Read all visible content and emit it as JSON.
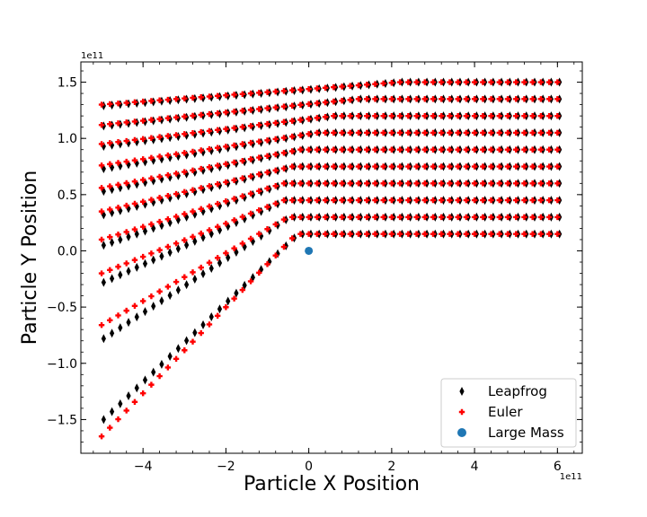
{
  "chart_data": {
    "type": "scatter",
    "xlabel": "Particle X Position",
    "ylabel": "Particle Y Position",
    "x_offset_label": "1e11",
    "y_offset_label": "1e11",
    "xlim": [
      -5.5,
      6.6
    ],
    "ylim": [
      -1.8,
      1.68
    ],
    "xticks": [
      -4,
      -2,
      0,
      2,
      4,
      6
    ],
    "xtick_labels": [
      "−4",
      "−2",
      "0",
      "2",
      "4",
      "6"
    ],
    "yticks": [
      -1.5,
      -1.0,
      -0.5,
      0.0,
      0.5,
      1.0,
      1.5
    ],
    "ytick_labels": [
      "−1.5",
      "−1.0",
      "−0.5",
      "0.0",
      "0.5",
      "1.0",
      "1.5"
    ],
    "grid": false,
    "legend_position": "lower-right",
    "x_range_particles": [
      -5.0,
      6.0
    ],
    "large_mass": {
      "x": 0.0,
      "y": 0.0,
      "color": "#1f77b4"
    },
    "series": [
      {
        "name": "Leapfrog",
        "marker": "thin-diamond",
        "color": "#000000"
      },
      {
        "name": "Euler",
        "marker": "plus-filled",
        "color": "#ff0000"
      },
      {
        "name": "Large Mass",
        "marker": "circle",
        "color": "#1f77b4"
      }
    ],
    "trajectories": [
      {
        "y_final": 0.15,
        "kink_x": -0.3,
        "leapfrog_start_y": -1.5,
        "euler_start_y": -1.65
      },
      {
        "y_final": 0.3,
        "kink_x": -0.5,
        "leapfrog_start_y": -0.78,
        "euler_start_y": -0.66
      },
      {
        "y_final": 0.45,
        "kink_x": -0.6,
        "leapfrog_start_y": -0.28,
        "euler_start_y": -0.2
      },
      {
        "y_final": 0.6,
        "kink_x": -0.6,
        "leapfrog_start_y": 0.05,
        "euler_start_y": 0.1
      },
      {
        "y_final": 0.75,
        "kink_x": -0.4,
        "leapfrog_start_y": 0.32,
        "euler_start_y": 0.35
      },
      {
        "y_final": 0.9,
        "kink_x": -0.2,
        "leapfrog_start_y": 0.53,
        "euler_start_y": 0.56
      },
      {
        "y_final": 1.05,
        "kink_x": 0.2,
        "leapfrog_start_y": 0.73,
        "euler_start_y": 0.76
      },
      {
        "y_final": 1.2,
        "kink_x": 0.6,
        "leapfrog_start_y": 0.93,
        "euler_start_y": 0.95
      },
      {
        "y_final": 1.35,
        "kink_x": 1.2,
        "leapfrog_start_y": 1.11,
        "euler_start_y": 1.12
      },
      {
        "y_final": 1.5,
        "kink_x": 2.2,
        "leapfrog_start_y": 1.29,
        "euler_start_y": 1.3
      }
    ]
  }
}
